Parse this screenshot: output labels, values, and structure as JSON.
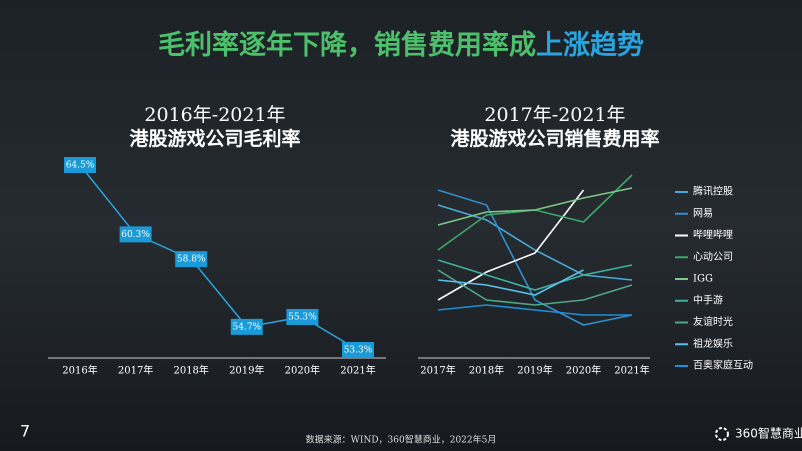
{
  "page_number": "7",
  "title": [
    "毛利率逐年下降，销售费用率成",
    "上涨趋势"
  ],
  "source": "数据来源：WIND，360智慧商业，2022年5月",
  "logo": "360智慧商业",
  "chart_data": [
    {
      "type": "line",
      "title": "2016年-2021年",
      "subtitle": "港股游戏公司毛利率",
      "categories": [
        "2016年",
        "2017年",
        "2018年",
        "2019年",
        "2020年",
        "2021年"
      ],
      "values": [
        64.5,
        60.3,
        58.8,
        54.7,
        55.3,
        53.3
      ],
      "value_labels": [
        "64.5%",
        "60.3%",
        "58.8%",
        "54.7%",
        "55.3%",
        "53.3%"
      ],
      "color": "#2aa4dc"
    },
    {
      "type": "multiline",
      "title": "2017年-2021年",
      "subtitle": "港股游戏公司销售费用率",
      "categories": [
        "2017年",
        "2018年",
        "2019年",
        "2020年",
        "2021年"
      ],
      "series": [
        {
          "name": "腾讯控股",
          "color": "#4aa8d8",
          "values": [
            135,
            120,
            90,
            65,
            60
          ]
        },
        {
          "name": "网易",
          "color": "#2f8fd0",
          "values": [
            150,
            135,
            40,
            15,
            25
          ]
        },
        {
          "name": "哔哩哔哩",
          "color": "#ffffff",
          "values": [
            40,
            68,
            87,
            150,
            null
          ]
        },
        {
          "name": "心动公司",
          "color": "#3ea86a",
          "values": [
            90,
            125,
            130,
            118,
            165
          ]
        },
        {
          "name": "IGG",
          "color": "#7dc98a",
          "values": [
            115,
            128,
            130,
            142,
            152
          ]
        },
        {
          "name": "中手游",
          "color": "#3fb0a0",
          "values": [
            80,
            65,
            50,
            65,
            75
          ]
        },
        {
          "name": "友谊时光",
          "color": "#4fa888",
          "values": [
            70,
            40,
            35,
            40,
            55
          ]
        },
        {
          "name": "祖龙娱乐",
          "color": "#5bc0e8",
          "values": [
            60,
            55,
            45,
            70,
            null
          ]
        },
        {
          "name": "百奥家庭互动",
          "color": "#1e90d8",
          "values": [
            30,
            35,
            30,
            25,
            25
          ]
        }
      ]
    }
  ]
}
